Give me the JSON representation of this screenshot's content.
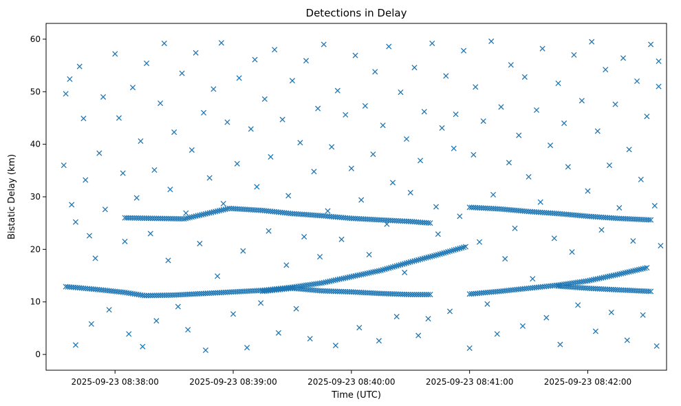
{
  "chart_data": {
    "type": "scatter",
    "title": "Detections in Delay",
    "xlabel": "Time (UTC)",
    "ylabel": "Bistatic Delay (km)",
    "x_type": "time",
    "xlim": [
      "2025-09-23 08:37:25",
      "2025-09-23 08:42:40"
    ],
    "ylim": [
      -3,
      63
    ],
    "xticks": [
      "2025-09-23 08:38:00",
      "2025-09-23 08:39:00",
      "2025-09-23 08:40:00",
      "2025-09-23 08:41:00",
      "2025-09-23 08:42:00"
    ],
    "yticks": [
      0,
      10,
      20,
      30,
      40,
      50,
      60
    ],
    "grid": false,
    "marker": "x",
    "color": "#1f77b4",
    "tracks": [
      {
        "points": [
          [
            "08:37:35",
            12.9
          ],
          [
            "08:37:50",
            12.4
          ],
          [
            "08:38:05",
            11.8
          ],
          [
            "08:38:15",
            11.2
          ],
          [
            "08:38:30",
            11.3
          ],
          [
            "08:38:45",
            11.6
          ],
          [
            "08:39:00",
            11.9
          ],
          [
            "08:39:15",
            12.2
          ],
          [
            "08:39:30",
            12.8
          ],
          [
            "08:39:45",
            13.6
          ],
          [
            "08:40:00",
            14.8
          ],
          [
            "08:40:15",
            16.0
          ],
          [
            "08:40:30",
            17.6
          ],
          [
            "08:40:45",
            19.1
          ],
          [
            "08:40:58",
            20.5
          ]
        ]
      },
      {
        "points": [
          [
            "08:39:15",
            12.0
          ],
          [
            "08:39:30",
            12.6
          ],
          [
            "08:39:45",
            12.1
          ],
          [
            "08:40:00",
            11.9
          ],
          [
            "08:40:15",
            11.6
          ],
          [
            "08:40:30",
            11.4
          ],
          [
            "08:40:40",
            11.4
          ]
        ]
      },
      {
        "points": [
          [
            "08:41:00",
            11.5
          ],
          [
            "08:41:15",
            12.0
          ],
          [
            "08:41:30",
            12.6
          ],
          [
            "08:41:45",
            13.2
          ],
          [
            "08:42:00",
            14.0
          ],
          [
            "08:42:15",
            15.2
          ],
          [
            "08:42:30",
            16.5
          ]
        ]
      },
      {
        "points": [
          [
            "08:41:45",
            13.0
          ],
          [
            "08:42:00",
            12.6
          ],
          [
            "08:42:15",
            12.3
          ],
          [
            "08:42:32",
            12.0
          ]
        ]
      },
      {
        "points": [
          [
            "08:38:05",
            26.0
          ],
          [
            "08:38:35",
            25.8
          ],
          [
            "08:38:58",
            27.8
          ],
          [
            "08:39:15",
            27.4
          ],
          [
            "08:39:30",
            26.8
          ],
          [
            "08:39:45",
            26.4
          ],
          [
            "08:40:00",
            25.9
          ],
          [
            "08:40:15",
            25.6
          ],
          [
            "08:40:30",
            25.3
          ],
          [
            "08:40:40",
            25.0
          ]
        ]
      },
      {
        "points": [
          [
            "08:41:00",
            28.0
          ],
          [
            "08:41:15",
            27.7
          ],
          [
            "08:41:30",
            27.2
          ],
          [
            "08:41:45",
            26.8
          ],
          [
            "08:42:00",
            26.3
          ],
          [
            "08:42:15",
            25.9
          ],
          [
            "08:42:32",
            25.6
          ]
        ]
      }
    ],
    "scatter_points": [
      [
        "08:37:34",
        36.0
      ],
      [
        "08:37:35",
        49.6
      ],
      [
        "08:37:37",
        52.4
      ],
      [
        "08:37:38",
        28.5
      ],
      [
        "08:37:40",
        25.2
      ],
      [
        "08:37:40",
        1.8
      ],
      [
        "08:37:42",
        54.8
      ],
      [
        "08:37:44",
        44.9
      ],
      [
        "08:37:45",
        33.2
      ],
      [
        "08:37:47",
        22.6
      ],
      [
        "08:37:48",
        5.8
      ],
      [
        "08:37:50",
        18.3
      ],
      [
        "08:37:52",
        38.3
      ],
      [
        "08:37:54",
        49.0
      ],
      [
        "08:37:55",
        27.6
      ],
      [
        "08:37:57",
        8.5
      ],
      [
        "08:38:00",
        57.2
      ],
      [
        "08:38:02",
        45.0
      ],
      [
        "08:38:04",
        34.5
      ],
      [
        "08:38:05",
        21.5
      ],
      [
        "08:38:07",
        3.9
      ],
      [
        "08:38:09",
        50.8
      ],
      [
        "08:38:11",
        29.8
      ],
      [
        "08:38:13",
        40.6
      ],
      [
        "08:38:14",
        1.5
      ],
      [
        "08:38:16",
        55.4
      ],
      [
        "08:38:18",
        23.0
      ],
      [
        "08:38:20",
        35.1
      ],
      [
        "08:38:21",
        6.4
      ],
      [
        "08:38:23",
        47.8
      ],
      [
        "08:38:25",
        59.2
      ],
      [
        "08:38:27",
        17.9
      ],
      [
        "08:38:28",
        31.4
      ],
      [
        "08:38:30",
        42.3
      ],
      [
        "08:38:32",
        9.1
      ],
      [
        "08:38:34",
        53.5
      ],
      [
        "08:38:36",
        26.9
      ],
      [
        "08:38:37",
        4.7
      ],
      [
        "08:38:39",
        38.9
      ],
      [
        "08:38:41",
        57.4
      ],
      [
        "08:38:43",
        21.1
      ],
      [
        "08:38:45",
        46.0
      ],
      [
        "08:38:46",
        0.8
      ],
      [
        "08:38:48",
        33.6
      ],
      [
        "08:38:50",
        50.5
      ],
      [
        "08:38:52",
        14.9
      ],
      [
        "08:38:54",
        59.3
      ],
      [
        "08:38:55",
        28.7
      ],
      [
        "08:38:57",
        44.2
      ],
      [
        "08:39:00",
        7.7
      ],
      [
        "08:39:02",
        36.3
      ],
      [
        "08:39:03",
        52.6
      ],
      [
        "08:39:05",
        19.7
      ],
      [
        "08:39:07",
        1.3
      ],
      [
        "08:39:09",
        42.9
      ],
      [
        "08:39:11",
        56.1
      ],
      [
        "08:39:12",
        31.9
      ],
      [
        "08:39:14",
        9.8
      ],
      [
        "08:39:16",
        48.6
      ],
      [
        "08:39:18",
        23.5
      ],
      [
        "08:39:19",
        37.6
      ],
      [
        "08:39:21",
        58.0
      ],
      [
        "08:39:23",
        4.1
      ],
      [
        "08:39:25",
        44.7
      ],
      [
        "08:39:27",
        17.0
      ],
      [
        "08:39:28",
        30.2
      ],
      [
        "08:39:30",
        52.1
      ],
      [
        "08:39:32",
        8.7
      ],
      [
        "08:39:34",
        40.3
      ],
      [
        "08:39:36",
        22.4
      ],
      [
        "08:39:37",
        55.9
      ],
      [
        "08:39:39",
        3.0
      ],
      [
        "08:39:41",
        34.8
      ],
      [
        "08:39:43",
        46.8
      ],
      [
        "08:39:44",
        18.6
      ],
      [
        "08:39:46",
        59.0
      ],
      [
        "08:39:48",
        27.3
      ],
      [
        "08:39:50",
        39.5
      ],
      [
        "08:39:52",
        1.7
      ],
      [
        "08:39:53",
        50.2
      ],
      [
        "08:39:55",
        21.9
      ],
      [
        "08:39:57",
        45.6
      ],
      [
        "08:40:00",
        35.4
      ],
      [
        "08:40:02",
        56.9
      ],
      [
        "08:40:04",
        5.1
      ],
      [
        "08:40:05",
        29.4
      ],
      [
        "08:40:07",
        47.3
      ],
      [
        "08:40:09",
        19.0
      ],
      [
        "08:40:11",
        38.1
      ],
      [
        "08:40:12",
        53.8
      ],
      [
        "08:40:14",
        2.6
      ],
      [
        "08:40:16",
        43.6
      ],
      [
        "08:40:18",
        24.8
      ],
      [
        "08:40:19",
        58.6
      ],
      [
        "08:40:21",
        32.7
      ],
      [
        "08:40:23",
        7.2
      ],
      [
        "08:40:25",
        49.9
      ],
      [
        "08:40:27",
        15.6
      ],
      [
        "08:40:28",
        41.0
      ],
      [
        "08:40:30",
        30.8
      ],
      [
        "08:40:32",
        54.6
      ],
      [
        "08:40:34",
        3.6
      ],
      [
        "08:40:35",
        36.9
      ],
      [
        "08:40:37",
        46.2
      ],
      [
        "08:40:39",
        6.8
      ],
      [
        "08:40:41",
        59.2
      ],
      [
        "08:40:43",
        28.1
      ],
      [
        "08:40:44",
        22.9
      ],
      [
        "08:40:46",
        43.1
      ],
      [
        "08:40:48",
        53.0
      ],
      [
        "08:40:50",
        8.2
      ],
      [
        "08:40:52",
        39.2
      ],
      [
        "08:40:53",
        45.7
      ],
      [
        "08:40:55",
        26.3
      ],
      [
        "08:40:57",
        57.8
      ],
      [
        "08:41:00",
        1.2
      ],
      [
        "08:41:02",
        38.0
      ],
      [
        "08:41:03",
        50.9
      ],
      [
        "08:41:05",
        21.4
      ],
      [
        "08:41:07",
        44.4
      ],
      [
        "08:41:09",
        9.6
      ],
      [
        "08:41:11",
        59.6
      ],
      [
        "08:41:12",
        30.4
      ],
      [
        "08:41:14",
        3.9
      ],
      [
        "08:41:16",
        47.1
      ],
      [
        "08:41:18",
        18.2
      ],
      [
        "08:41:20",
        36.5
      ],
      [
        "08:41:21",
        55.1
      ],
      [
        "08:41:23",
        24.0
      ],
      [
        "08:41:25",
        41.7
      ],
      [
        "08:41:27",
        5.4
      ],
      [
        "08:41:28",
        52.8
      ],
      [
        "08:41:30",
        33.8
      ],
      [
        "08:41:32",
        14.4
      ],
      [
        "08:41:34",
        46.5
      ],
      [
        "08:41:36",
        29.0
      ],
      [
        "08:41:37",
        58.2
      ],
      [
        "08:41:39",
        7.0
      ],
      [
        "08:41:41",
        39.8
      ],
      [
        "08:41:43",
        22.1
      ],
      [
        "08:41:45",
        51.6
      ],
      [
        "08:41:46",
        1.9
      ],
      [
        "08:41:48",
        44.0
      ],
      [
        "08:41:50",
        35.7
      ],
      [
        "08:41:52",
        19.5
      ],
      [
        "08:41:53",
        57.0
      ],
      [
        "08:41:55",
        9.4
      ],
      [
        "08:41:57",
        48.3
      ],
      [
        "08:42:00",
        31.1
      ],
      [
        "08:42:02",
        59.5
      ],
      [
        "08:42:04",
        4.4
      ],
      [
        "08:42:05",
        42.5
      ],
      [
        "08:42:07",
        23.7
      ],
      [
        "08:42:09",
        54.2
      ],
      [
        "08:42:11",
        36.0
      ],
      [
        "08:42:12",
        8.0
      ],
      [
        "08:42:14",
        47.6
      ],
      [
        "08:42:16",
        27.9
      ],
      [
        "08:42:18",
        56.4
      ],
      [
        "08:42:20",
        2.7
      ],
      [
        "08:42:21",
        39.0
      ],
      [
        "08:42:23",
        21.6
      ],
      [
        "08:42:25",
        52.0
      ],
      [
        "08:42:27",
        33.3
      ],
      [
        "08:42:28",
        7.5
      ],
      [
        "08:42:30",
        45.3
      ],
      [
        "08:42:32",
        59.0
      ],
      [
        "08:42:34",
        28.3
      ],
      [
        "08:42:35",
        1.6
      ],
      [
        "08:42:36",
        51.0
      ],
      [
        "08:42:36",
        55.8
      ],
      [
        "08:42:37",
        20.7
      ]
    ]
  }
}
